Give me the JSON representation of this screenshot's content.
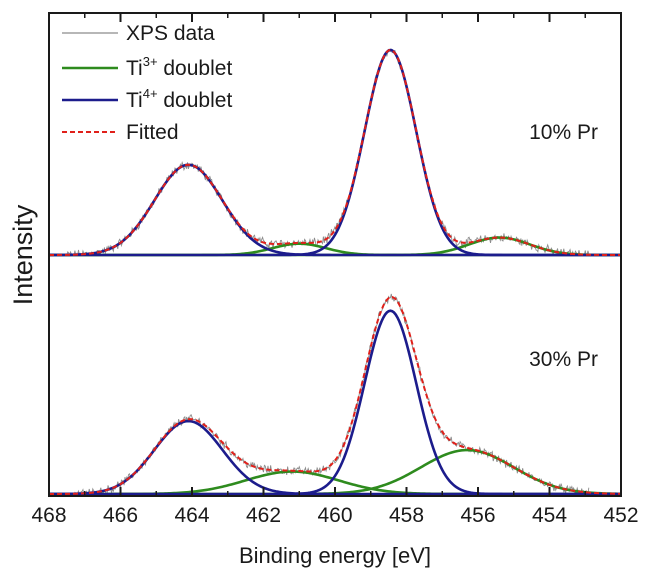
{
  "chart_data": {
    "type": "line",
    "xlabel": "Binding energy [eV]",
    "ylabel": "Intensity",
    "xlim": [
      468,
      452
    ],
    "x_reversed": true,
    "xticks": [
      468,
      466,
      464,
      462,
      460,
      458,
      456,
      454,
      452
    ],
    "yticks_shown": false,
    "grid": false,
    "legend": {
      "placement": "top-left",
      "entries": [
        {
          "key": "xps",
          "name": "XPS data",
          "color": "#8c8c8c",
          "style": "solid"
        },
        {
          "key": "ti3",
          "base": "Ti",
          "sup": "3+",
          "suffix": " doublet",
          "color": "#2e8b1e",
          "style": "solid"
        },
        {
          "key": "ti4",
          "base": "Ti",
          "sup": "4+",
          "suffix": " doublet",
          "color": "#1c1c8c",
          "style": "solid"
        },
        {
          "key": "fit",
          "name": "Fitted",
          "color": "#e0201a",
          "style": "dashed"
        }
      ]
    },
    "panels": [
      {
        "label": "10% Pr",
        "ti4_peaks": [
          {
            "center": 464.1,
            "sigma": 0.95,
            "amplitude": 0.44
          },
          {
            "center": 458.45,
            "sigma": 0.72,
            "amplitude": 1.0
          }
        ],
        "ti3_peaks": [
          {
            "center": 461.0,
            "sigma": 0.75,
            "amplitude": 0.055
          },
          {
            "center": 455.4,
            "sigma": 0.85,
            "amplitude": 0.085
          }
        ]
      },
      {
        "label": "30% Pr",
        "ti4_peaks": [
          {
            "center": 464.1,
            "sigma": 0.95,
            "amplitude": 0.39
          },
          {
            "center": 458.45,
            "sigma": 0.72,
            "amplitude": 0.98
          }
        ],
        "ti3_peaks": [
          {
            "center": 461.2,
            "sigma": 1.3,
            "amplitude": 0.12
          },
          {
            "center": 456.3,
            "sigma": 1.3,
            "amplitude": 0.235
          }
        ]
      }
    ]
  }
}
